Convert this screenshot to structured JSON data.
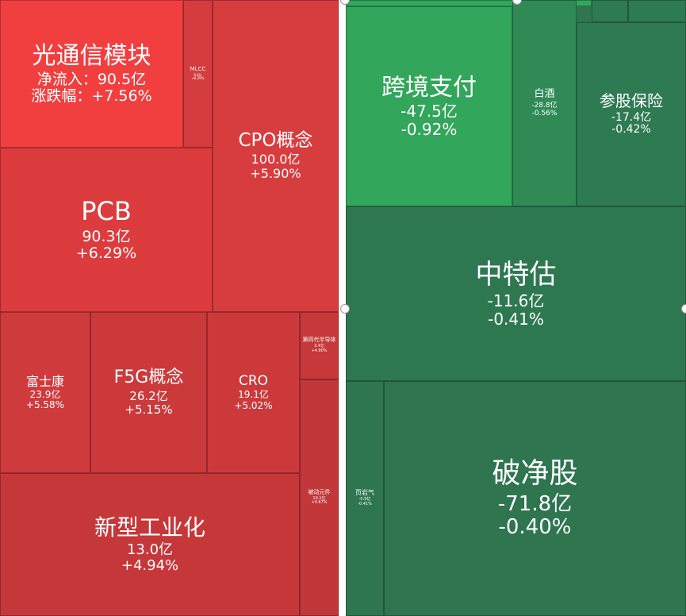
{
  "chart_data": [
    {
      "type": "treemap",
      "colors": {
        "background": "#c8373a"
      },
      "tiles": [
        {
          "name": "光通信模块",
          "flow_label": "净流入：",
          "flow": "90.5亿",
          "change_label": "涨跌幅：",
          "change": "+7.56%",
          "color": "#f13f40"
        },
        {
          "name": "MLCC",
          "flow": "9.6亿",
          "change": "+6.29%",
          "color": "#d53c3e"
        },
        {
          "name": "CPO概念",
          "flow": "100.0亿",
          "change": "+5.90%",
          "color": "#d73d3f"
        },
        {
          "name": "PCB",
          "flow": "90.3亿",
          "change": "+6.29%",
          "color": "#dc3c3e"
        },
        {
          "name": "富士康",
          "flow": "23.9亿",
          "change": "+5.58%",
          "color": "#cf3a3c"
        },
        {
          "name": "F5G概念",
          "flow": "26.2亿",
          "change": "+5.15%",
          "color": "#cb393b"
        },
        {
          "name": "CRO",
          "flow": "19.1亿",
          "change": "+5.02%",
          "color": "#cc393b"
        },
        {
          "name": "第四代半导体",
          "flow": "3.4亿",
          "change": "+4.90%",
          "color": "#c6383a"
        },
        {
          "name": "被动元件",
          "flow": "19.1亿",
          "change": "+4.67%",
          "color": "#c2383a"
        },
        {
          "name": "新型工业化",
          "flow": "13.0亿",
          "change": "+4.94%",
          "color": "#c6373a"
        }
      ]
    },
    {
      "type": "treemap",
      "colors": {
        "background": "#2e7550"
      },
      "tiles": [
        {
          "name": "跨境支付",
          "flow": "-47.5亿",
          "change": "-0.92%",
          "color": "#32a65a"
        },
        {
          "name": "白酒",
          "flow": "-28.8亿",
          "change": "-0.56%",
          "color": "#2f8a56"
        },
        {
          "name": "参股保险",
          "flow": "-17.4亿",
          "change": "-0.42%",
          "color": "#2e7a52"
        },
        {
          "name": "中特估",
          "flow": "-11.6亿",
          "change": "-0.41%",
          "color": "#2e7851"
        },
        {
          "name": "页岩气",
          "flow": "-5.9亿",
          "change": "-0.41%",
          "color": "#2e7650"
        },
        {
          "name": "破净股",
          "flow": "-71.8亿",
          "change": "-0.40%",
          "color": "#2e7550"
        }
      ]
    }
  ]
}
